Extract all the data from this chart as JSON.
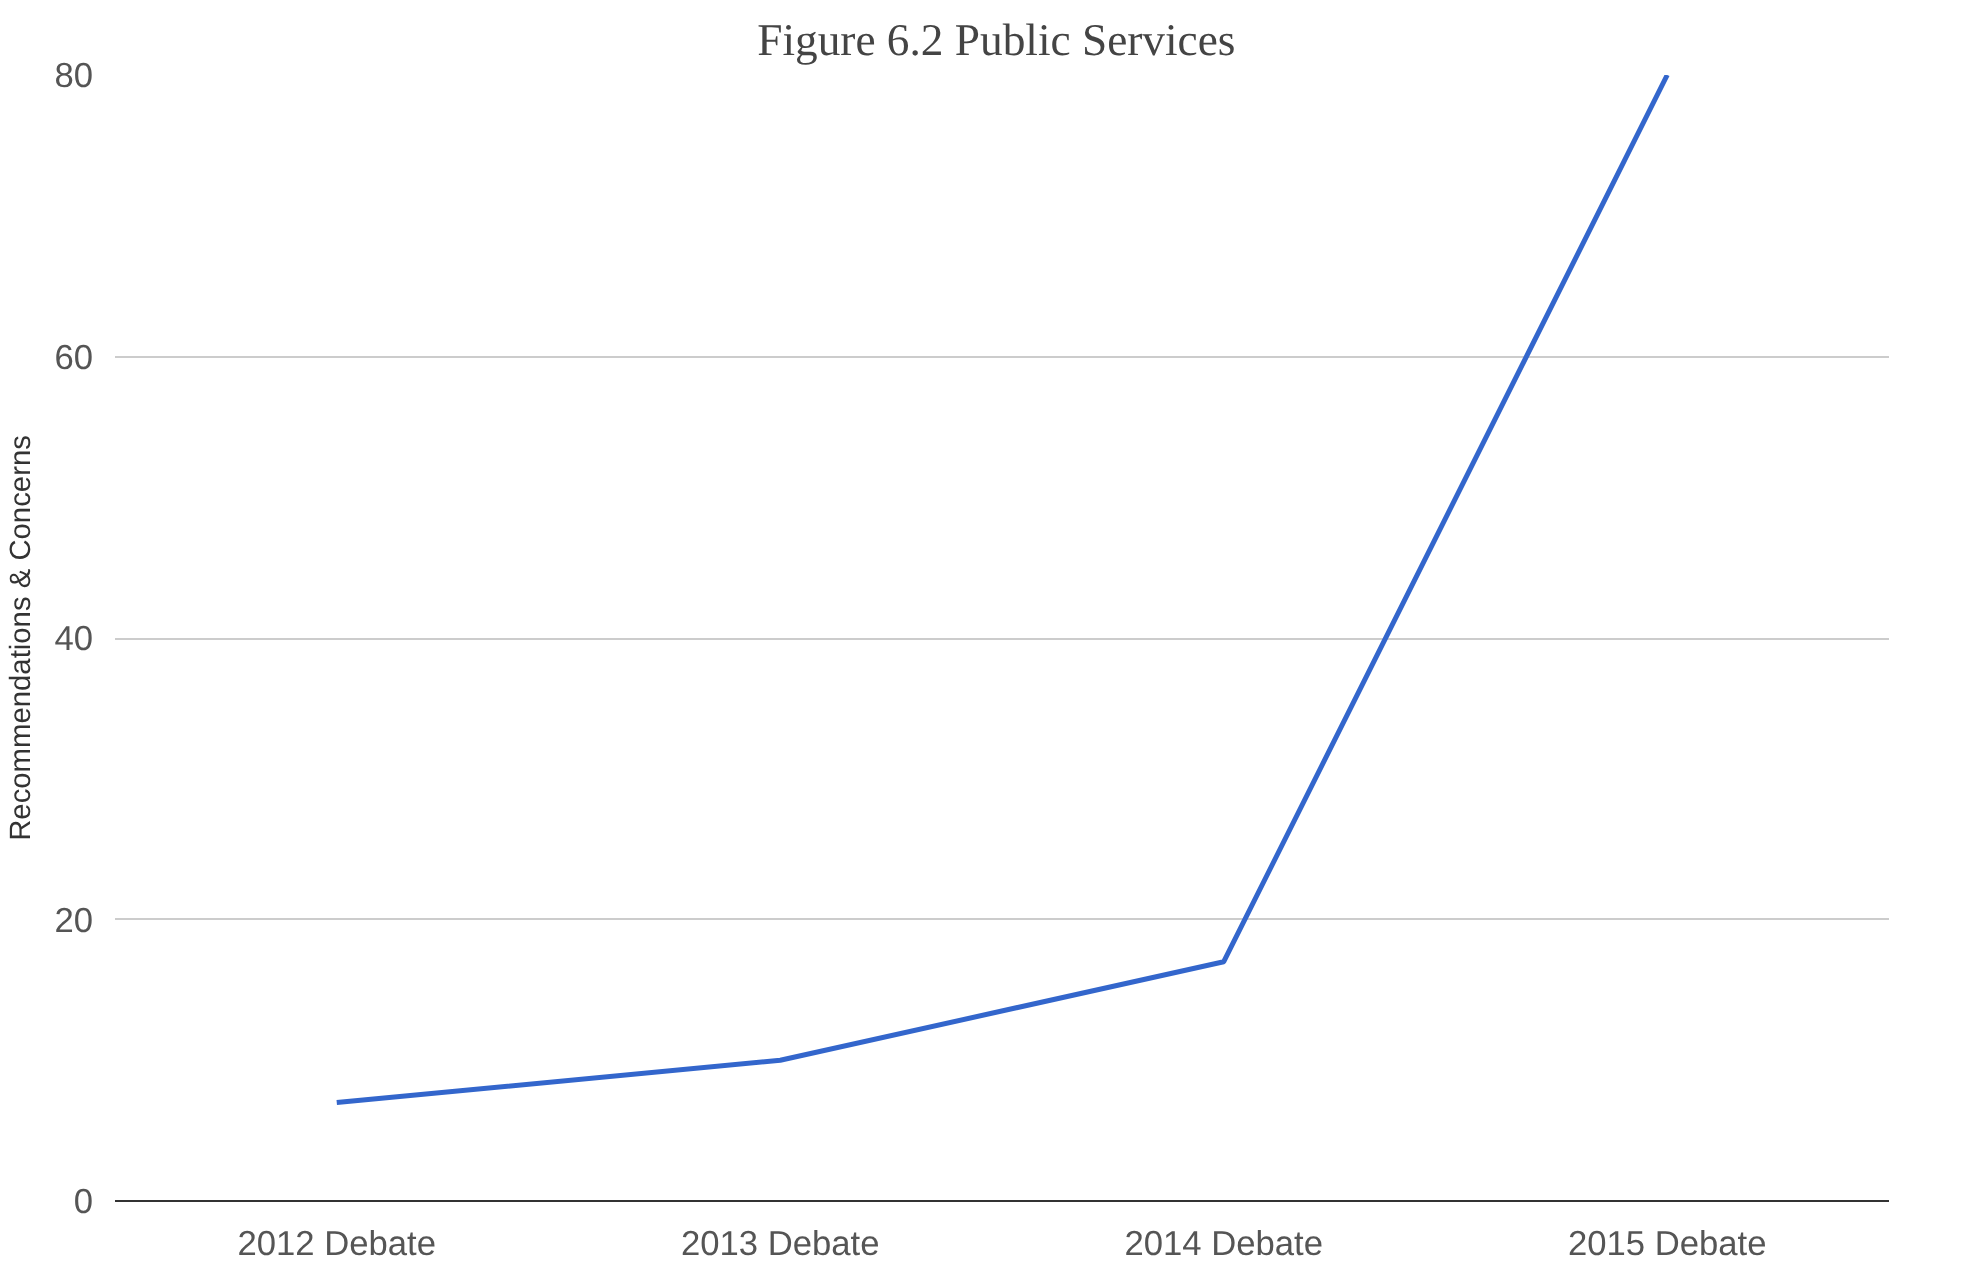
{
  "chart_data": {
    "type": "line",
    "title": "Figure 6.2  Public Services",
    "ylabel": "Recommendations & Concerns",
    "categories": [
      "2012 Debate",
      "2013 Debate",
      "2014 Debate",
      "2015 Debate"
    ],
    "series": [
      {
        "color": "#3366cc",
        "values": [
          7,
          10,
          17,
          80
        ]
      }
    ],
    "ylim": [
      0,
      80
    ],
    "yticks": [
      0,
      20,
      40,
      60,
      80
    ],
    "grid": "y",
    "marker": "none",
    "line_style": "solid"
  }
}
